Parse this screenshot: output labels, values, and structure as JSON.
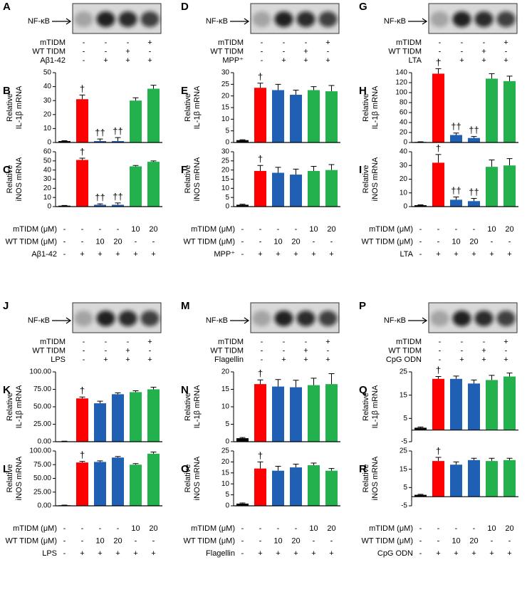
{
  "chart_data": [
    {
      "type": "bar",
      "panel": "B",
      "ylabel": [
        "Relative",
        "IL-1β mRNA"
      ],
      "values": [
        1,
        31,
        1,
        1,
        30,
        38.5
      ],
      "errors": [
        0.3,
        3,
        1.5,
        2.5,
        2,
        2.5
      ],
      "colors": [
        "#000000",
        "#ff0000",
        "#1f5fb4",
        "#1f5fb4",
        "#22b14c",
        "#22b14c"
      ],
      "ylim": [
        0,
        50
      ],
      "yticks": [
        0,
        10,
        20,
        30,
        40,
        50
      ],
      "annotations": [
        {
          "index": 1,
          "text": "†"
        },
        {
          "index": 2,
          "text": "††"
        },
        {
          "index": 3,
          "text": "††"
        }
      ]
    },
    {
      "type": "bar",
      "panel": "C",
      "ylabel": [
        "Relative",
        "iNOS mRNA"
      ],
      "values": [
        1,
        51,
        2,
        2,
        44,
        49
      ],
      "errors": [
        0.3,
        2,
        1,
        2,
        1,
        1
      ],
      "colors": [
        "#000000",
        "#ff0000",
        "#1f5fb4",
        "#1f5fb4",
        "#22b14c",
        "#22b14c"
      ],
      "ylim": [
        0,
        60
      ],
      "yticks": [
        0,
        10,
        20,
        30,
        40,
        50,
        60
      ],
      "annotations": [
        {
          "index": 1,
          "text": "†"
        },
        {
          "index": 2,
          "text": "††"
        },
        {
          "index": 3,
          "text": "††"
        }
      ]
    },
    {
      "type": "bar",
      "panel": "E",
      "ylabel": [
        "Relative",
        "IL-1β mRNA"
      ],
      "values": [
        1,
        23.5,
        22.5,
        20.5,
        22.5,
        22
      ],
      "errors": [
        0.2,
        2,
        2.5,
        2,
        1.5,
        2.5
      ],
      "colors": [
        "#000000",
        "#ff0000",
        "#1f5fb4",
        "#1f5fb4",
        "#22b14c",
        "#22b14c"
      ],
      "ylim": [
        0,
        30
      ],
      "yticks": [
        0,
        5,
        10,
        15,
        20,
        25,
        30
      ],
      "annotations": [
        {
          "index": 1,
          "text": "†"
        }
      ]
    },
    {
      "type": "bar",
      "panel": "F",
      "ylabel": [
        "Relative",
        "iNOS mRNA"
      ],
      "values": [
        1,
        19.5,
        18.5,
        17.5,
        19.5,
        20
      ],
      "errors": [
        0.3,
        3,
        3,
        3,
        2.5,
        3
      ],
      "colors": [
        "#000000",
        "#ff0000",
        "#1f5fb4",
        "#1f5fb4",
        "#22b14c",
        "#22b14c"
      ],
      "ylim": [
        0,
        30
      ],
      "yticks": [
        0,
        5,
        10,
        15,
        20,
        25,
        30
      ],
      "annotations": [
        {
          "index": 1,
          "text": "†"
        }
      ]
    },
    {
      "type": "bar",
      "panel": "H",
      "ylabel": [
        "Relative",
        "IL-1β mRNA"
      ],
      "values": [
        1,
        138,
        15,
        9,
        128,
        123
      ],
      "errors": [
        0.5,
        10,
        4,
        3,
        10,
        10
      ],
      "colors": [
        "#000000",
        "#ff0000",
        "#1f5fb4",
        "#1f5fb4",
        "#22b14c",
        "#22b14c"
      ],
      "ylim": [
        0,
        140
      ],
      "yticks": [
        0,
        20,
        40,
        60,
        80,
        100,
        120,
        140
      ],
      "annotations": [
        {
          "index": 1,
          "text": "†"
        },
        {
          "index": 2,
          "text": "††"
        },
        {
          "index": 3,
          "text": "††"
        }
      ]
    },
    {
      "type": "bar",
      "panel": "I",
      "ylabel": [
        "Relative",
        "iNOS mRNA"
      ],
      "values": [
        1,
        32,
        5,
        4,
        29,
        30
      ],
      "errors": [
        0.3,
        6,
        2,
        2,
        5,
        5
      ],
      "colors": [
        "#000000",
        "#ff0000",
        "#1f5fb4",
        "#1f5fb4",
        "#22b14c",
        "#22b14c"
      ],
      "ylim": [
        0,
        40
      ],
      "yticks": [
        0,
        10,
        20,
        30,
        40
      ],
      "annotations": [
        {
          "index": 1,
          "text": "†"
        },
        {
          "index": 2,
          "text": "††"
        },
        {
          "index": 3,
          "text": "††"
        }
      ]
    },
    {
      "type": "bar",
      "panel": "K",
      "ylabel": [
        "Relative",
        "IL-1β mRNA"
      ],
      "values": [
        0.5,
        62,
        55,
        68,
        71,
        75
      ],
      "errors": [
        0.3,
        2,
        3,
        2,
        2,
        3
      ],
      "colors": [
        "#000000",
        "#ff0000",
        "#1f5fb4",
        "#1f5fb4",
        "#22b14c",
        "#22b14c"
      ],
      "ylim": [
        0,
        100
      ],
      "yticks": [
        {
          "value": 0,
          "label": "0.00"
        },
        {
          "value": 25,
          "label": "25.00"
        },
        {
          "value": 50,
          "label": "50.00"
        },
        {
          "value": 75,
          "label": "75.00"
        },
        {
          "value": 100,
          "label": "100.00"
        }
      ],
      "annotations": [
        {
          "index": 1,
          "text": "†"
        }
      ]
    },
    {
      "type": "bar",
      "panel": "L",
      "ylabel": [
        "Relative",
        "iNOS mRNA"
      ],
      "values": [
        1,
        79,
        80,
        88,
        75,
        95
      ],
      "errors": [
        0.3,
        2,
        2,
        2,
        2,
        3
      ],
      "colors": [
        "#000000",
        "#ff0000",
        "#1f5fb4",
        "#1f5fb4",
        "#22b14c",
        "#22b14c"
      ],
      "ylim": [
        0,
        100
      ],
      "yticks": [
        {
          "value": 0,
          "label": "0.00"
        },
        {
          "value": 25,
          "label": "25.00"
        },
        {
          "value": 50,
          "label": "50.00"
        },
        {
          "value": 75,
          "label": "75.00"
        },
        {
          "value": 100,
          "label": "100.00"
        }
      ],
      "annotations": [
        {
          "index": 1,
          "text": "†"
        }
      ]
    },
    {
      "type": "bar",
      "panel": "N",
      "ylabel": [
        "Relative",
        "IL-1β mRNA"
      ],
      "values": [
        1,
        16.5,
        15.8,
        15.6,
        16.2,
        16.5
      ],
      "errors": [
        0.2,
        1.2,
        2,
        2,
        2,
        3
      ],
      "colors": [
        "#000000",
        "#ff0000",
        "#1f5fb4",
        "#1f5fb4",
        "#22b14c",
        "#22b14c"
      ],
      "ylim": [
        0,
        20
      ],
      "yticks": [
        0,
        5,
        10,
        15,
        20
      ],
      "annotations": [
        {
          "index": 1,
          "text": "†"
        }
      ]
    },
    {
      "type": "bar",
      "panel": "O",
      "ylabel": [
        "Relative",
        "iNOS mRNA"
      ],
      "values": [
        1,
        17,
        16,
        17.5,
        18.5,
        16
      ],
      "errors": [
        0.3,
        3,
        2,
        1.5,
        1,
        1
      ],
      "colors": [
        "#000000",
        "#ff0000",
        "#1f5fb4",
        "#1f5fb4",
        "#22b14c",
        "#22b14c"
      ],
      "ylim": [
        0,
        25
      ],
      "yticks": [
        0,
        5,
        10,
        15,
        20,
        25
      ],
      "annotations": [
        {
          "index": 1,
          "text": "†"
        }
      ]
    },
    {
      "type": "bar",
      "panel": "Q",
      "ylabel": [
        "Relative",
        "IL-1β mRNA"
      ],
      "values": [
        1,
        22,
        22,
        20,
        21.5,
        23
      ],
      "errors": [
        0.3,
        1,
        1.2,
        1.5,
        2,
        1.5
      ],
      "colors": [
        "#000000",
        "#ff0000",
        "#1f5fb4",
        "#1f5fb4",
        "#22b14c",
        "#22b14c"
      ],
      "ylim": [
        -5,
        25
      ],
      "yticks": [
        -5,
        5,
        15,
        25
      ],
      "annotations": [
        {
          "index": 1,
          "text": "†"
        }
      ]
    },
    {
      "type": "bar",
      "panel": "R",
      "ylabel": [
        "Relative",
        "iNOS mRNA"
      ],
      "values": [
        1,
        19.5,
        17.5,
        20,
        19.5,
        20
      ],
      "errors": [
        0.3,
        2,
        1.5,
        1,
        1.5,
        1
      ],
      "colors": [
        "#000000",
        "#ff0000",
        "#1f5fb4",
        "#1f5fb4",
        "#22b14c",
        "#22b14c"
      ],
      "ylim": [
        -5,
        25
      ],
      "yticks": [
        -5,
        5,
        15,
        25
      ],
      "annotations": [
        {
          "index": 1,
          "text": "†"
        }
      ]
    }
  ],
  "blots": [
    {
      "panel": "A",
      "label": "NF-κB",
      "rows": [
        {
          "name": "mTIDM",
          "values": [
            "-",
            "-",
            "-",
            "+"
          ]
        },
        {
          "name": "WT TIDM",
          "values": [
            "-",
            "-",
            "+",
            "-"
          ]
        },
        {
          "name": "Aβ1-42",
          "values": [
            "-",
            "+",
            "+",
            "+"
          ]
        }
      ]
    },
    {
      "panel": "D",
      "label": "NF-κB",
      "rows": [
        {
          "name": "mTIDM",
          "values": [
            "-",
            "-",
            "-",
            "+"
          ]
        },
        {
          "name": "WT TIDM",
          "values": [
            "-",
            "-",
            "+",
            "-"
          ]
        },
        {
          "name": "MPP⁺",
          "values": [
            "-",
            "+",
            "+",
            "+"
          ]
        }
      ]
    },
    {
      "panel": "G",
      "label": "NF-κB",
      "rows": [
        {
          "name": "mTIDM",
          "values": [
            "-",
            "-",
            "-",
            "+"
          ]
        },
        {
          "name": "WT TIDM",
          "values": [
            "-",
            "-",
            "+",
            "-"
          ]
        },
        {
          "name": "LTA",
          "values": [
            "-",
            "+",
            "+",
            "+"
          ]
        }
      ]
    },
    {
      "panel": "J",
      "label": "NF-κB",
      "rows": [
        {
          "name": "mTIDM",
          "values": [
            "-",
            "-",
            "-",
            "+"
          ]
        },
        {
          "name": "WT TIDM",
          "values": [
            "-",
            "-",
            "+",
            "-"
          ]
        },
        {
          "name": "LPS",
          "values": [
            "-",
            "+",
            "+",
            "+"
          ]
        }
      ]
    },
    {
      "panel": "M",
      "label": "NF-κB",
      "rows": [
        {
          "name": "mTIDM",
          "values": [
            "-",
            "-",
            "-",
            "+"
          ]
        },
        {
          "name": "WT TIDM",
          "values": [
            "-",
            "-",
            "+",
            "-"
          ]
        },
        {
          "name": "Flagellin",
          "values": [
            "-",
            "+",
            "+",
            "+"
          ]
        }
      ]
    },
    {
      "panel": "P",
      "label": "NF-κB",
      "rows": [
        {
          "name": "mTIDM",
          "values": [
            "-",
            "-",
            "-",
            "+"
          ]
        },
        {
          "name": "WT TIDM",
          "values": [
            "-",
            "-",
            "+",
            "-"
          ]
        },
        {
          "name": "CpG ODN",
          "values": [
            "-",
            "+",
            "+",
            "+"
          ]
        }
      ]
    }
  ],
  "tables": [
    {
      "rows": [
        {
          "name": "mTIDM (μM)",
          "values": [
            "-",
            "-",
            "-",
            "-",
            "10",
            "20"
          ]
        },
        {
          "name": "WT TIDM (μM)",
          "values": [
            "-",
            "-",
            "10",
            "20",
            "-",
            "-"
          ]
        },
        {
          "name": "Aβ1-42",
          "values": [
            "-",
            "+",
            "+",
            "+",
            "+",
            "+"
          ]
        }
      ]
    },
    {
      "rows": [
        {
          "name": "mTIDM (μM)",
          "values": [
            "-",
            "-",
            "-",
            "-",
            "10",
            "20"
          ]
        },
        {
          "name": "WT TIDM (μM)",
          "values": [
            "-",
            "-",
            "10",
            "20",
            "-",
            "-"
          ]
        },
        {
          "name": "MPP⁺",
          "values": [
            "-",
            "+",
            "+",
            "+",
            "+",
            "+"
          ]
        }
      ]
    },
    {
      "rows": [
        {
          "name": "mTIDM (μM)",
          "values": [
            "-",
            "-",
            "-",
            "-",
            "10",
            "20"
          ]
        },
        {
          "name": "WT TIDM (μM)",
          "values": [
            "-",
            "-",
            "10",
            "20",
            "-",
            "-"
          ]
        },
        {
          "name": "LTA",
          "values": [
            "-",
            "+",
            "+",
            "+",
            "+",
            "+"
          ]
        }
      ]
    },
    {
      "rows": [
        {
          "name": "mTIDM (μM)",
          "values": [
            "-",
            "-",
            "-",
            "-",
            "10",
            "20"
          ]
        },
        {
          "name": "WT TIDM (μM)",
          "values": [
            "-",
            "-",
            "10",
            "20",
            "-",
            "-"
          ]
        },
        {
          "name": "LPS",
          "values": [
            "-",
            "+",
            "+",
            "+",
            "+",
            "+"
          ]
        }
      ]
    },
    {
      "rows": [
        {
          "name": "mTIDM (μM)",
          "values": [
            "-",
            "-",
            "-",
            "-",
            "10",
            "20"
          ]
        },
        {
          "name": "WT TIDM (μM)",
          "values": [
            "-",
            "-",
            "10",
            "20",
            "-",
            "-"
          ]
        },
        {
          "name": "Flagellin",
          "values": [
            "-",
            "+",
            "+",
            "+",
            "+",
            "+"
          ]
        }
      ]
    },
    {
      "rows": [
        {
          "name": "mTIDM (μM)",
          "values": [
            "-",
            "-",
            "-",
            "-",
            "10",
            "20"
          ]
        },
        {
          "name": "WT TIDM (μM)",
          "values": [
            "-",
            "-",
            "10",
            "20",
            "-",
            "-"
          ]
        },
        {
          "name": "CpG ODN",
          "values": [
            "-",
            "+",
            "+",
            "+",
            "+",
            "+"
          ]
        }
      ]
    }
  ]
}
